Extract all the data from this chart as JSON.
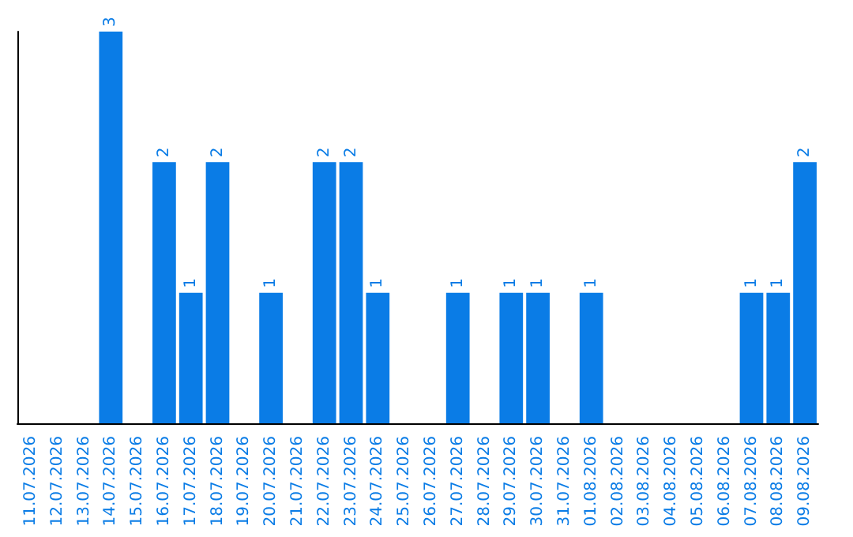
{
  "chart_data": {
    "type": "bar",
    "categories": [
      "11.07.2026",
      "12.07.2026",
      "13.07.2026",
      "14.07.2026",
      "15.07.2026",
      "16.07.2026",
      "17.07.2026",
      "18.07.2026",
      "19.07.2026",
      "20.07.2026",
      "21.07.2026",
      "22.07.2026",
      "23.07.2026",
      "24.07.2026",
      "25.07.2026",
      "26.07.2026",
      "27.07.2026",
      "28.07.2026",
      "29.07.2026",
      "30.07.2026",
      "31.07.2026",
      "01.08.2026",
      "02.08.2026",
      "03.08.2026",
      "04.08.2026",
      "05.08.2026",
      "06.08.2026",
      "07.08.2026",
      "08.08.2026",
      "09.08.2026"
    ],
    "values": [
      null,
      null,
      null,
      3,
      null,
      2,
      1,
      2,
      null,
      1,
      null,
      2,
      2,
      1,
      null,
      null,
      1,
      null,
      1,
      1,
      null,
      1,
      null,
      null,
      null,
      null,
      null,
      1,
      1,
      2
    ],
    "color": "#0a7ce6",
    "data_labels": true,
    "tick_labels": "x"
  }
}
